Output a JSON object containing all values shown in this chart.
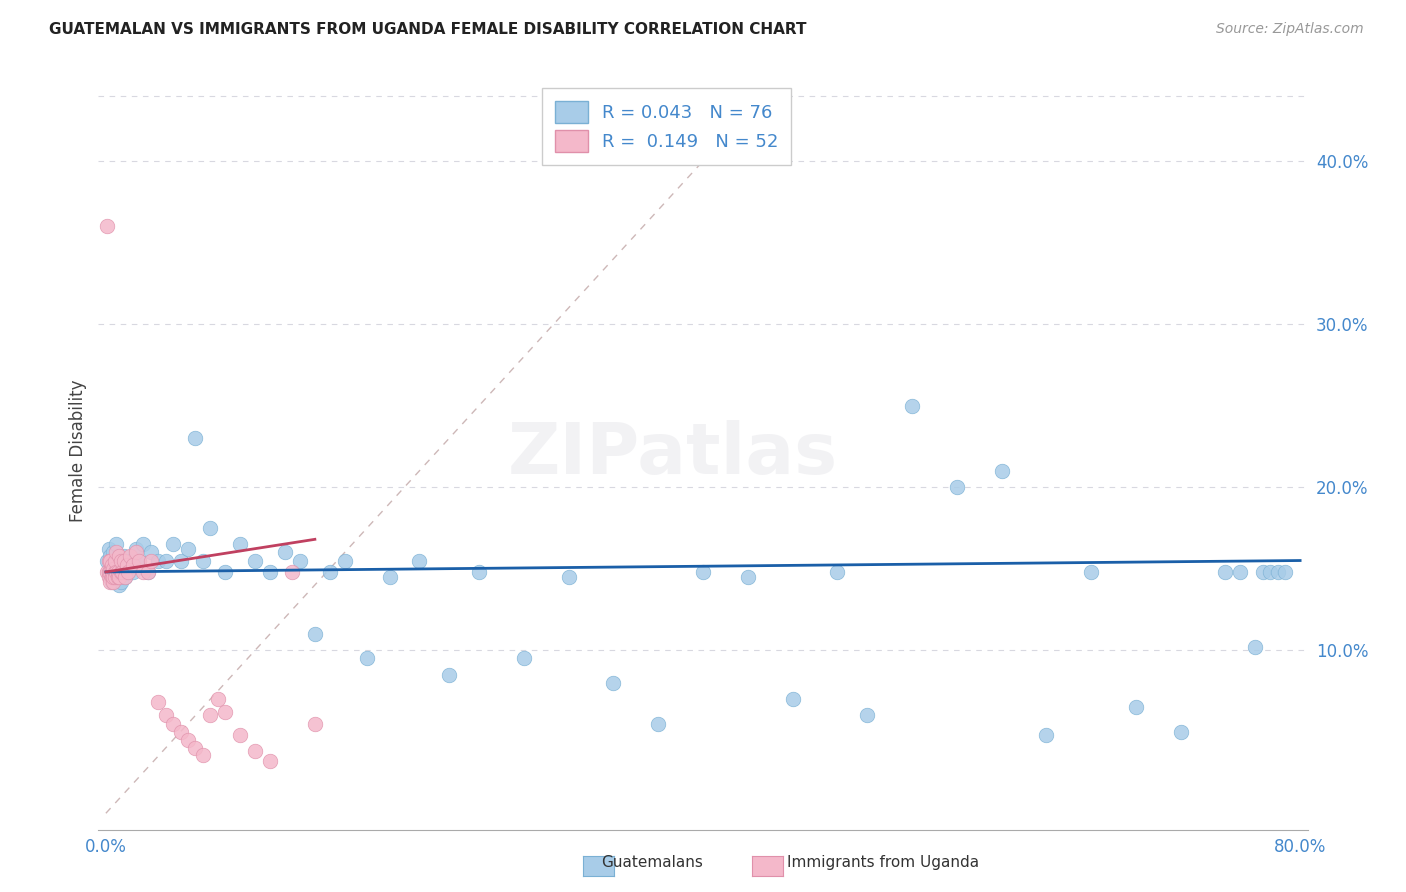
{
  "title": "GUATEMALAN VS IMMIGRANTS FROM UGANDA FEMALE DISABILITY CORRELATION CHART",
  "source": "Source: ZipAtlas.com",
  "ylabel": "Female Disability",
  "color_blue": "#a8cce8",
  "color_blue_edge": "#7ab0d4",
  "color_pink": "#f4b8ca",
  "color_pink_edge": "#e090aa",
  "trend_blue_color": "#1a5fa8",
  "trend_pink_color": "#c04060",
  "diag_color": "#c8b0b0",
  "grid_color": "#d8d8e0",
  "tick_color": "#4488cc",
  "title_color": "#222222",
  "source_color": "#999999",
  "watermark": "ZIPatlas",
  "xlim": [
    0.0,
    0.8
  ],
  "ylim": [
    0.0,
    0.44
  ],
  "ytick_vals": [
    0.1,
    0.2,
    0.3,
    0.4
  ],
  "ytick_labels": [
    "10.0%",
    "20.0%",
    "30.0%",
    "40.0%"
  ],
  "xtick_vals": [
    0.0,
    0.8
  ],
  "xtick_labels": [
    "0.0%",
    "80.0%"
  ],
  "guatemalans_x": [
    0.001,
    0.002,
    0.002,
    0.003,
    0.003,
    0.004,
    0.004,
    0.005,
    0.005,
    0.006,
    0.006,
    0.007,
    0.007,
    0.008,
    0.008,
    0.009,
    0.009,
    0.01,
    0.01,
    0.011,
    0.012,
    0.013,
    0.014,
    0.015,
    0.016,
    0.018,
    0.02,
    0.022,
    0.025,
    0.028,
    0.03,
    0.035,
    0.04,
    0.045,
    0.05,
    0.055,
    0.06,
    0.065,
    0.07,
    0.08,
    0.09,
    0.1,
    0.11,
    0.12,
    0.13,
    0.14,
    0.15,
    0.16,
    0.175,
    0.19,
    0.21,
    0.23,
    0.25,
    0.28,
    0.31,
    0.34,
    0.37,
    0.4,
    0.43,
    0.46,
    0.49,
    0.51,
    0.54,
    0.57,
    0.6,
    0.63,
    0.66,
    0.69,
    0.72,
    0.75,
    0.76,
    0.77,
    0.775,
    0.78,
    0.785,
    0.79
  ],
  "guatemalans_y": [
    0.155,
    0.148,
    0.162,
    0.145,
    0.158,
    0.142,
    0.155,
    0.15,
    0.16,
    0.145,
    0.152,
    0.148,
    0.165,
    0.145,
    0.155,
    0.148,
    0.14,
    0.155,
    0.142,
    0.148,
    0.158,
    0.145,
    0.152,
    0.148,
    0.155,
    0.148,
    0.162,
    0.155,
    0.165,
    0.148,
    0.16,
    0.155,
    0.155,
    0.165,
    0.155,
    0.162,
    0.23,
    0.155,
    0.175,
    0.148,
    0.165,
    0.155,
    0.148,
    0.16,
    0.155,
    0.11,
    0.148,
    0.155,
    0.095,
    0.145,
    0.155,
    0.085,
    0.148,
    0.095,
    0.145,
    0.08,
    0.055,
    0.148,
    0.145,
    0.07,
    0.148,
    0.06,
    0.25,
    0.2,
    0.21,
    0.048,
    0.148,
    0.065,
    0.05,
    0.148,
    0.148,
    0.102,
    0.148,
    0.148,
    0.148,
    0.148
  ],
  "uganda_x": [
    0.001,
    0.001,
    0.002,
    0.002,
    0.002,
    0.003,
    0.003,
    0.003,
    0.004,
    0.004,
    0.004,
    0.005,
    0.005,
    0.005,
    0.006,
    0.006,
    0.006,
    0.007,
    0.007,
    0.008,
    0.008,
    0.009,
    0.009,
    0.01,
    0.01,
    0.011,
    0.012,
    0.013,
    0.014,
    0.015,
    0.016,
    0.018,
    0.02,
    0.022,
    0.025,
    0.028,
    0.03,
    0.035,
    0.04,
    0.045,
    0.05,
    0.055,
    0.06,
    0.065,
    0.07,
    0.075,
    0.08,
    0.09,
    0.1,
    0.11,
    0.125,
    0.14
  ],
  "uganda_y": [
    0.36,
    0.148,
    0.145,
    0.155,
    0.148,
    0.142,
    0.155,
    0.148,
    0.145,
    0.152,
    0.148,
    0.142,
    0.15,
    0.145,
    0.148,
    0.155,
    0.145,
    0.148,
    0.16,
    0.145,
    0.148,
    0.145,
    0.158,
    0.148,
    0.155,
    0.148,
    0.155,
    0.145,
    0.152,
    0.148,
    0.158,
    0.152,
    0.16,
    0.155,
    0.148,
    0.148,
    0.155,
    0.068,
    0.06,
    0.055,
    0.05,
    0.045,
    0.04,
    0.036,
    0.06,
    0.07,
    0.062,
    0.048,
    0.038,
    0.032,
    0.148,
    0.055
  ],
  "blue_trend_x": [
    0.0,
    0.8
  ],
  "blue_trend_y_start": 0.148,
  "blue_trend_y_end": 0.155,
  "pink_trend_x": [
    0.0,
    0.14
  ],
  "pink_trend_y_start": 0.148,
  "pink_trend_y_end": 0.168
}
